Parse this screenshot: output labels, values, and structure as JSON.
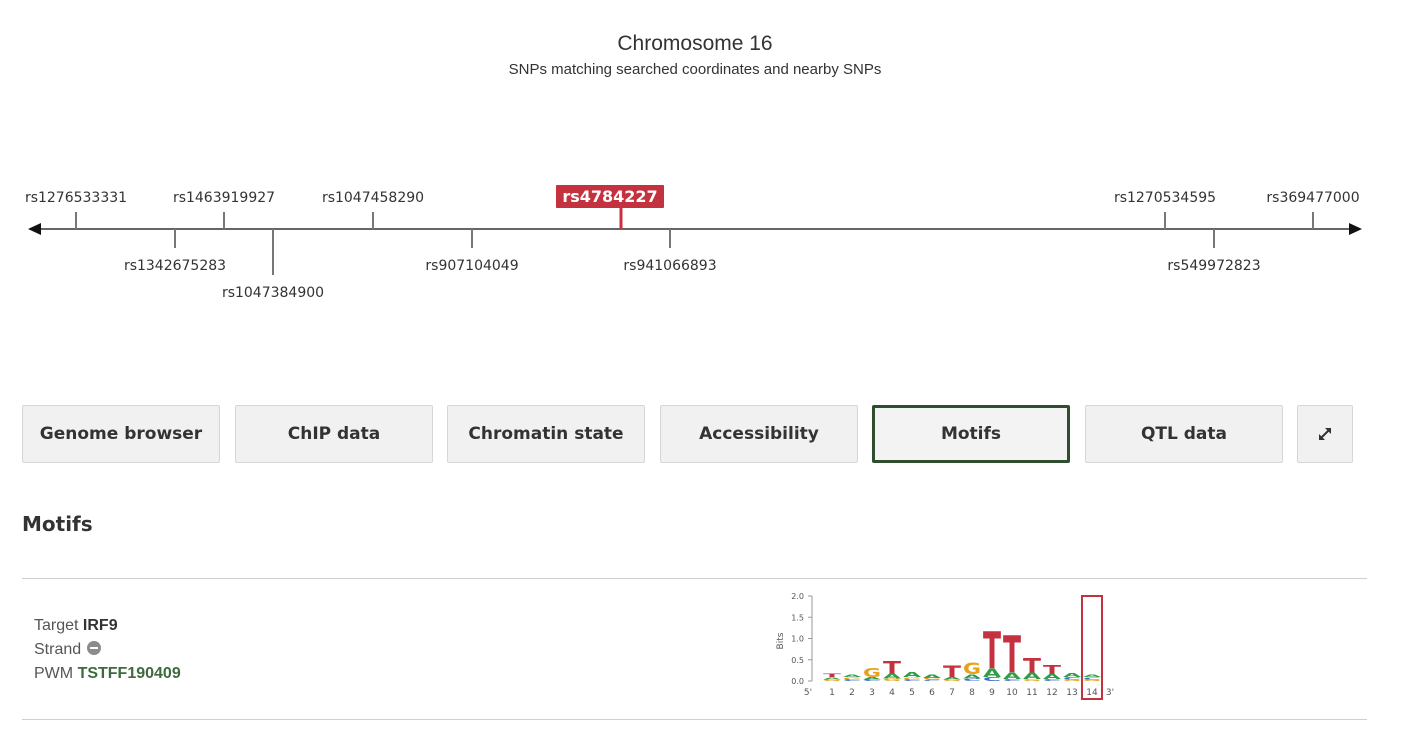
{
  "header": {
    "title": "Chromosome 16",
    "subtitle": "SNPs matching searched coordinates and nearby SNPs"
  },
  "snp_track": {
    "highlighted": "rs4784227",
    "highlight_color": "#c5323f",
    "above": [
      "rs1276533331",
      "rs1463919927",
      "rs1047458290",
      "rs1270534595",
      "rs369477000"
    ],
    "below": [
      "rs1342675283",
      "rs907104049",
      "rs941066893",
      "rs549972823"
    ],
    "below_far": [
      "rs1047384900"
    ]
  },
  "buttons": [
    {
      "label": "Genome browser",
      "active": false
    },
    {
      "label": "ChIP data",
      "active": false
    },
    {
      "label": "Chromatin state",
      "active": false
    },
    {
      "label": "Accessibility",
      "active": false
    },
    {
      "label": "Motifs",
      "active": true
    },
    {
      "label": "QTL data",
      "active": false
    }
  ],
  "expand_icon": "expand-arrows-icon",
  "section": {
    "title": "Motifs"
  },
  "motif": {
    "target_label": "Target",
    "target": "IRF9",
    "strand_label": "Strand",
    "strand_icon": "minus-circle-icon",
    "pwm_label": "PWM",
    "pwm": "TSTFF190409"
  },
  "chart_data": {
    "type": "sequence-logo",
    "ylabel": "Bits",
    "yticks": [
      "2.0",
      "1.5",
      "1.0",
      "0.5",
      "0.0"
    ],
    "ylim": [
      0,
      2
    ],
    "x": [
      "1",
      "2",
      "3",
      "4",
      "5",
      "6",
      "7",
      "8",
      "9",
      "10",
      "11",
      "12",
      "13",
      "14"
    ],
    "five_prime": "5'",
    "three_prime": "3'",
    "highlight_position": "14",
    "base_colors": {
      "A": "#2e9e47",
      "C": "#3b6fc4",
      "G": "#e8a21a",
      "T": "#c5323f"
    },
    "columns": [
      [
        [
          "T",
          0.08
        ],
        [
          "A",
          0.05
        ],
        [
          "G",
          0.04
        ]
      ],
      [
        [
          "A",
          0.06
        ],
        [
          "G",
          0.05
        ],
        [
          "C",
          0.04
        ]
      ],
      [
        [
          "G",
          0.22
        ],
        [
          "A",
          0.06
        ],
        [
          "C",
          0.04
        ]
      ],
      [
        [
          "T",
          0.3
        ],
        [
          "A",
          0.12
        ],
        [
          "G",
          0.06
        ]
      ],
      [
        [
          "A",
          0.12
        ],
        [
          "G",
          0.05
        ],
        [
          "C",
          0.04
        ]
      ],
      [
        [
          "A",
          0.07
        ],
        [
          "G",
          0.04
        ],
        [
          "C",
          0.03
        ]
      ],
      [
        [
          "T",
          0.28
        ],
        [
          "A",
          0.06
        ],
        [
          "G",
          0.04
        ]
      ],
      [
        [
          "G",
          0.28
        ],
        [
          "A",
          0.1
        ],
        [
          "C",
          0.06
        ]
      ],
      [
        [
          "T",
          0.9
        ],
        [
          "A",
          0.2
        ],
        [
          "C",
          0.1
        ]
      ],
      [
        [
          "T",
          0.9
        ],
        [
          "A",
          0.15
        ],
        [
          "C",
          0.05
        ]
      ],
      [
        [
          "T",
          0.35
        ],
        [
          "A",
          0.15
        ],
        [
          "G",
          0.05
        ]
      ],
      [
        [
          "T",
          0.22
        ],
        [
          "A",
          0.12
        ],
        [
          "C",
          0.05
        ]
      ],
      [
        [
          "A",
          0.1
        ],
        [
          "C",
          0.06
        ],
        [
          "G",
          0.04
        ]
      ],
      [
        [
          "A",
          0.06
        ],
        [
          "C",
          0.05
        ],
        [
          "G",
          0.04
        ]
      ]
    ]
  }
}
